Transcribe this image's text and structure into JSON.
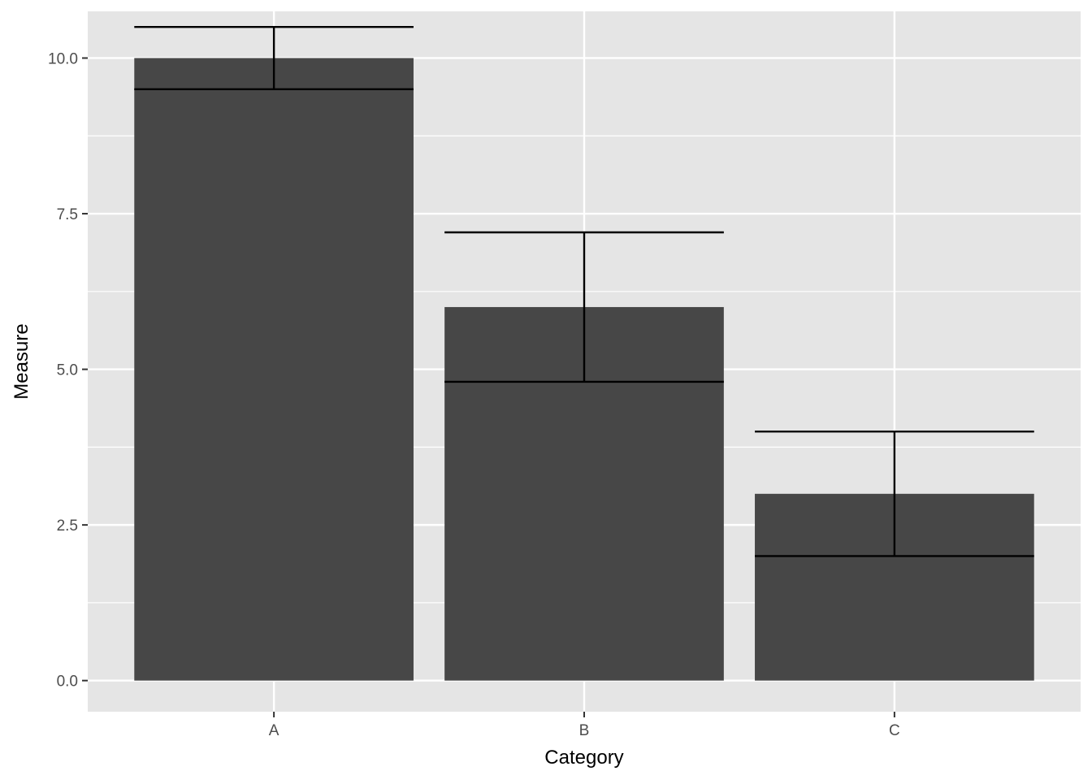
{
  "chart_data": {
    "type": "bar",
    "xlabel": "Category",
    "ylabel": "Measure",
    "categories": [
      "A",
      "B",
      "C"
    ],
    "values": [
      10,
      6,
      3
    ],
    "error_bars": {
      "lower": [
        9.5,
        4.8,
        2.0
      ],
      "upper": [
        10.5,
        7.2,
        4.0
      ]
    },
    "ylim": [
      -0.5,
      10.75
    ],
    "yticks": [
      0,
      2.5,
      5,
      7.5,
      10
    ],
    "ytick_labels": [
      "0.0",
      "2.5",
      "5.0",
      "7.5",
      "10.0"
    ],
    "grid": true,
    "colors": {
      "panel_background": "#e5e5e5",
      "grid": "#ffffff",
      "bar_fill": "#474747",
      "error_bar": "#000000",
      "tick_mark": "#333333",
      "tick_label": "#4d4d4d"
    }
  }
}
